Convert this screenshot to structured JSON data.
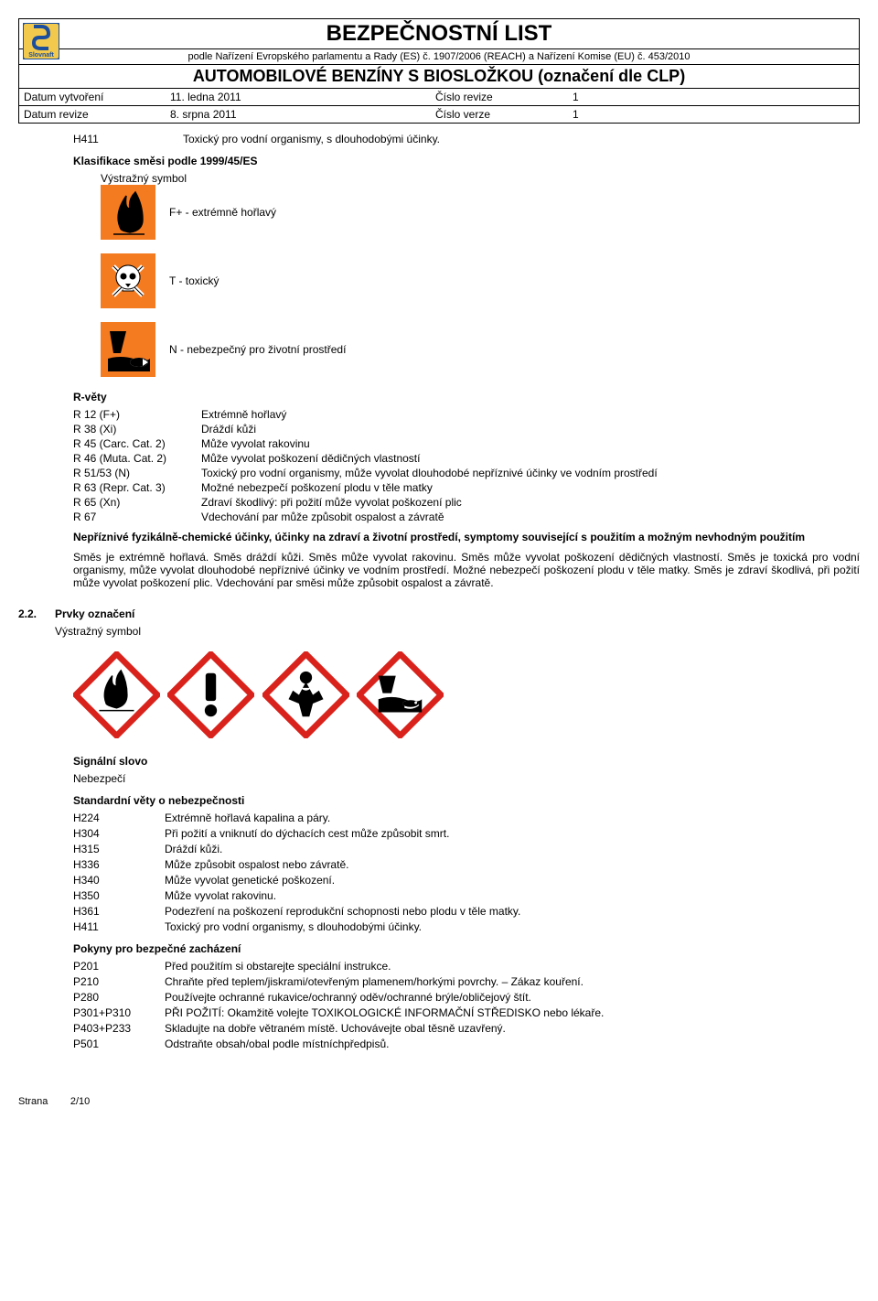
{
  "header": {
    "title": "BEZPEČNOSTNÍ LIST",
    "subtitle": "podle Nařízení Evropského parlamentu a Rady (ES) č. 1907/2006 (REACH) a Nařízení Komise (EU) č. 453/2010",
    "product": "AUTOMOBILOVÉ BENZÍNY S BIOSLOŽKOU (označení dle CLP)",
    "created_label": "Datum vytvoření",
    "created_val": "11. ledna 2011",
    "rev_num_label": "Číslo revize",
    "rev_num_val": "1",
    "revised_label": "Datum revize",
    "revised_val": "8. srpna 2011",
    "ver_label": "Číslo verze",
    "ver_val": "1",
    "logo_label": "Slovnaft"
  },
  "h411_top": {
    "code": "H411",
    "text": "Toxický pro vodní organismy, s dlouhodobými účinky."
  },
  "classif": {
    "head": "Klasifikace směsi podle 1999/45/ES",
    "symlabel": "Výstražný symbol",
    "symbols": [
      {
        "label": "F+ - extrémně hořlavý",
        "kind": "flame"
      },
      {
        "label": "T - toxický",
        "kind": "skull"
      },
      {
        "label": "N - nebezpečný pro životní prostředí",
        "kind": "env"
      }
    ]
  },
  "rvety": {
    "head": "R-věty",
    "items": [
      {
        "code": "R 12 (F+)",
        "text": "Extrémně hořlavý"
      },
      {
        "code": "R 38 (Xi)",
        "text": "Dráždí kůži"
      },
      {
        "code": "R 45 (Carc. Cat. 2)",
        "text": "Může vyvolat rakovinu"
      },
      {
        "code": "R 46 (Muta. Cat. 2)",
        "text": "Může vyvolat poškození dědičných vlastností"
      },
      {
        "code": "R 51/53 (N)",
        "text": "Toxický pro vodní organismy, může vyvolat dlouhodobé nepříznivé účinky ve vodním prostředí"
      },
      {
        "code": "R 63 (Repr. Cat. 3)",
        "text": "Možné nebezpečí poškození plodu v těle matky"
      },
      {
        "code": "R 65 (Xn)",
        "text": "Zdraví škodlivý: při požití může vyvolat poškození plic"
      },
      {
        "code": "R 67",
        "text": "Vdechování par může způsobit ospalost a závratě"
      }
    ]
  },
  "adverse": {
    "head": "Nepříznivé fyzikálně-chemické účinky, účinky na zdraví a životní prostředí, symptomy související s použitím a možným nevhodným použitím",
    "text": "Směs je extrémně hořlavá. Směs dráždí kůži. Směs může vyvolat rakovinu. Směs může vyvolat poškození dědičných vlastností. Směs je toxická pro vodní organismy, může vyvolat dlouhodobé nepříznivé účinky ve vodním prostředí. Možné nebezpečí poškození plodu v těle matky. Směs je zdraví škodlivá, při požití může vyvolat poškození plic. Vdechování par směsi může způsobit ospalost a závratě."
  },
  "s22": {
    "num": "2.2.",
    "head": "Prvky označení",
    "symlabel": "Výstražný symbol"
  },
  "signal": {
    "label": "Signální slovo",
    "val": "Nebezpečí"
  },
  "hphrases": {
    "head": "Standardní věty o nebezpečnosti",
    "items": [
      {
        "code": "H224",
        "text": "Extrémně hořlavá kapalina a páry."
      },
      {
        "code": "H304",
        "text": "Při požití a vniknutí do dýchacích cest může způsobit smrt."
      },
      {
        "code": "H315",
        "text": "Dráždí kůži."
      },
      {
        "code": "H336",
        "text": "Může způsobit ospalost nebo závratě."
      },
      {
        "code": "H340",
        "text": "Může vyvolat genetické poškození."
      },
      {
        "code": "H350",
        "text": "Může vyvolat rakovinu."
      },
      {
        "code": "H361",
        "text": "Podezření na poškození reprodukční schopnosti nebo plodu v těle matky."
      },
      {
        "code": "H411",
        "text": "Toxický pro vodní organismy, s dlouhodobými účinky."
      }
    ]
  },
  "pphrases": {
    "head": "Pokyny pro bezpečné zacházení",
    "items": [
      {
        "code": "P201",
        "text": "Před použitím si obstarejte speciální instrukce."
      },
      {
        "code": "P210",
        "text": "Chraňte před teplem/jiskrami/otevřeným plamenem/horkými povrchy. – Zákaz kouření."
      },
      {
        "code": "P280",
        "text": "Používejte ochranné rukavice/ochranný oděv/ochranné brýle/obličejový štít."
      },
      {
        "code": "P301+P310",
        "text": "PŘI POŽITÍ: Okamžitě volejte TOXIKOLOGICKÉ INFORMAČNÍ STŘEDISKO nebo lékaře."
      },
      {
        "code": "P403+P233",
        "text": "Skladujte na dobře větraném místě. Uchovávejte obal těsně uzavřený."
      },
      {
        "code": "P501",
        "text": "Odstraňte obsah/obal podle místníchpředpisů."
      }
    ]
  },
  "footer": {
    "label": "Strana",
    "page": "2/10"
  },
  "colors": {
    "hazard_orange": "#f47b20",
    "ghs_red": "#d9221b",
    "logo_yellow": "#f2c94c",
    "logo_blue": "#1b4f9e"
  }
}
